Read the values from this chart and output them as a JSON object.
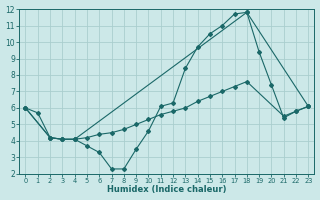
{
  "xlabel": "Humidex (Indice chaleur)",
  "bg_color": "#cce8e8",
  "grid_color": "#aacece",
  "line_color": "#1a6868",
  "xlim": [
    -0.5,
    23.5
  ],
  "ylim": [
    2,
    12
  ],
  "xticks": [
    0,
    1,
    2,
    3,
    4,
    5,
    6,
    7,
    8,
    9,
    10,
    11,
    12,
    13,
    14,
    15,
    16,
    17,
    18,
    19,
    20,
    21,
    22,
    23
  ],
  "yticks": [
    2,
    3,
    4,
    5,
    6,
    7,
    8,
    9,
    10,
    11,
    12
  ],
  "line1_x": [
    0,
    1,
    2,
    3,
    4,
    5,
    6,
    7,
    8,
    9,
    10,
    11,
    12,
    13,
    14,
    15,
    16,
    17,
    18,
    19,
    20,
    21,
    22,
    23
  ],
  "line1_y": [
    6.0,
    5.7,
    4.2,
    4.1,
    4.1,
    3.7,
    3.3,
    2.3,
    2.3,
    3.5,
    4.6,
    6.1,
    6.3,
    8.4,
    9.7,
    10.5,
    11.0,
    11.7,
    11.8,
    9.4,
    7.4,
    5.4,
    5.8,
    6.1
  ],
  "line2_x": [
    0,
    2,
    3,
    4,
    5,
    6,
    7,
    8,
    9,
    10,
    11,
    12,
    13,
    14,
    15,
    16,
    17,
    18,
    21,
    22,
    23
  ],
  "line2_y": [
    6.0,
    4.2,
    4.1,
    4.1,
    4.2,
    4.4,
    4.5,
    4.7,
    5.0,
    5.3,
    5.6,
    5.8,
    6.0,
    6.4,
    6.7,
    7.0,
    7.3,
    7.6,
    5.5,
    5.8,
    6.1
  ],
  "line3_x": [
    0,
    2,
    3,
    4,
    18,
    23
  ],
  "line3_y": [
    6.0,
    4.2,
    4.1,
    4.1,
    11.8,
    6.1
  ]
}
